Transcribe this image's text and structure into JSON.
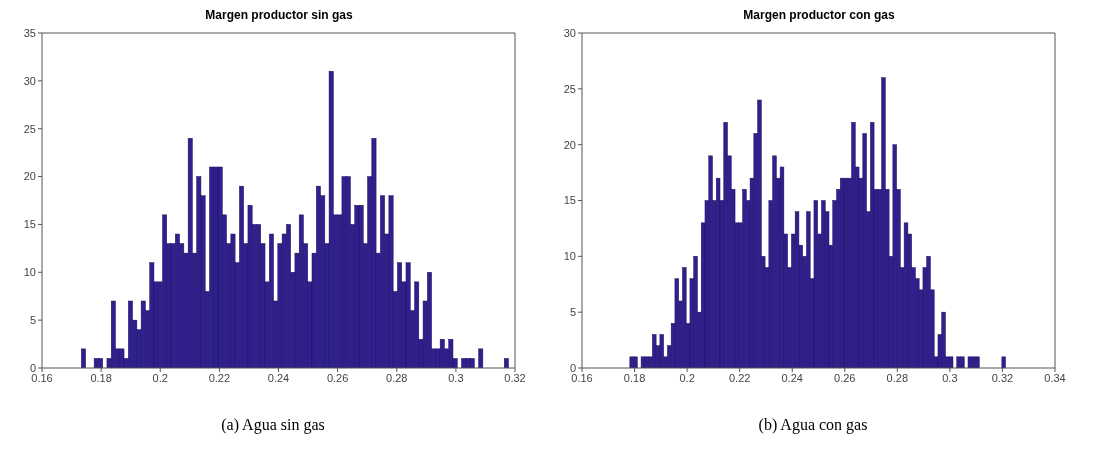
{
  "chart_data": [
    {
      "type": "histogram",
      "title": "Margen productor sin gas",
      "annotations": [
        "(a) Agua sin gas"
      ],
      "color": "#30208f",
      "bins": [
        0.1733,
        0.17475,
        0.17619,
        0.17764,
        0.17908,
        0.18053,
        0.18197,
        0.18342,
        0.18486,
        0.18631,
        0.18775,
        0.1892,
        0.19064,
        0.19209,
        0.19353,
        0.19498,
        0.19642,
        0.19787,
        0.19931,
        0.20076,
        0.2022,
        0.20365,
        0.20509,
        0.20654,
        0.20798,
        0.20943,
        0.21087,
        0.21232,
        0.21376,
        0.21521,
        0.21665,
        0.2181,
        0.21954,
        0.22099,
        0.22243,
        0.22388,
        0.22532,
        0.22677,
        0.22821,
        0.22966,
        0.2311,
        0.23255,
        0.23399,
        0.23544,
        0.23688,
        0.23833,
        0.23977,
        0.24122,
        0.24266,
        0.24411,
        0.24555,
        0.247,
        0.24844,
        0.24989,
        0.25133,
        0.25278,
        0.25422,
        0.25567,
        0.25711,
        0.25856,
        0.26,
        0.26145,
        0.26289,
        0.26434,
        0.26578,
        0.26723,
        0.26867,
        0.27012,
        0.27156,
        0.27301,
        0.27445,
        0.2759,
        0.27734,
        0.27879,
        0.28023,
        0.28168,
        0.28312,
        0.28457,
        0.28601,
        0.28746,
        0.2889,
        0.29035,
        0.29179,
        0.29324,
        0.29468,
        0.29613,
        0.29757,
        0.29902,
        0.30046,
        0.30191,
        0.30335,
        0.3048,
        0.30624,
        0.30769,
        0.30913,
        0.31058,
        0.31202,
        0.31347,
        0.31491,
        0.31636,
        0.3178
      ],
      "values": [
        2,
        0,
        0,
        1,
        1,
        0,
        1,
        7,
        2,
        2,
        1,
        7,
        5,
        4,
        7,
        6,
        11,
        9,
        9,
        16,
        13,
        13,
        14,
        13,
        12,
        24,
        12,
        20,
        18,
        8,
        21,
        21,
        21,
        16,
        13,
        14,
        11,
        19,
        13,
        17,
        15,
        15,
        13,
        9,
        14,
        7,
        13,
        14,
        15,
        10,
        12,
        16,
        13,
        9,
        12,
        19,
        18,
        13,
        31,
        16,
        16,
        20,
        20,
        15,
        17,
        17,
        13,
        20,
        24,
        12,
        18,
        14,
        18,
        8,
        11,
        9,
        11,
        6,
        9,
        3,
        7,
        10,
        2,
        2,
        3,
        2,
        3,
        1,
        0,
        1,
        1,
        1,
        0,
        2,
        0,
        0,
        0,
        0,
        0,
        1
      ],
      "xlim": [
        0.16,
        0.32
      ],
      "xticks": [
        0.16,
        0.18,
        0.2,
        0.22,
        0.24,
        0.26,
        0.28,
        0.3,
        0.32
      ],
      "ylim": [
        0,
        35
      ],
      "yticks": [
        0,
        5,
        10,
        15,
        20,
        25,
        30,
        35
      ]
    },
    {
      "type": "histogram",
      "title": "Margen productor con gas",
      "annotations": [
        "(b) Agua con gas"
      ],
      "color": "#30208f",
      "bins": [
        0.1782,
        0.17963,
        0.18106,
        0.18249,
        0.18392,
        0.18535,
        0.18678,
        0.18821,
        0.18964,
        0.19107,
        0.1925,
        0.19393,
        0.19536,
        0.19679,
        0.19822,
        0.19965,
        0.20108,
        0.20251,
        0.20394,
        0.20537,
        0.2068,
        0.20823,
        0.20966,
        0.21109,
        0.21252,
        0.21395,
        0.21538,
        0.21681,
        0.21824,
        0.21967,
        0.2211,
        0.22253,
        0.22396,
        0.22539,
        0.22682,
        0.22825,
        0.22968,
        0.23111,
        0.23254,
        0.23397,
        0.2354,
        0.23683,
        0.23826,
        0.23969,
        0.24112,
        0.24255,
        0.24398,
        0.24541,
        0.24684,
        0.24827,
        0.2497,
        0.25113,
        0.25256,
        0.25399,
        0.25542,
        0.25685,
        0.25828,
        0.25971,
        0.26114,
        0.26257,
        0.264,
        0.26543,
        0.26686,
        0.26829,
        0.26972,
        0.27115,
        0.27258,
        0.27401,
        0.27544,
        0.27687,
        0.2783,
        0.27973,
        0.28116,
        0.28259,
        0.28402,
        0.28545,
        0.28688,
        0.28831,
        0.28974,
        0.29117,
        0.2926,
        0.29403,
        0.29546,
        0.29689,
        0.29832,
        0.29975,
        0.30118,
        0.30261,
        0.30404,
        0.30547,
        0.3069,
        0.30833,
        0.30976,
        0.31119,
        0.31262,
        0.31405,
        0.31548,
        0.31691,
        0.31834,
        0.31977,
        0.3212
      ],
      "values": [
        1,
        1,
        0,
        1,
        1,
        1,
        3,
        2,
        3,
        1,
        2,
        4,
        8,
        6,
        9,
        4,
        8,
        10,
        5,
        13,
        15,
        19,
        15,
        17,
        15,
        22,
        19,
        16,
        13,
        13,
        16,
        15,
        17,
        21,
        24,
        10,
        9,
        15,
        19,
        17,
        18,
        12,
        9,
        12,
        14,
        11,
        10,
        14,
        8,
        15,
        12,
        15,
        14,
        11,
        15,
        16,
        17,
        17,
        17,
        22,
        18,
        17,
        21,
        14,
        22,
        16,
        16,
        26,
        16,
        10,
        20,
        16,
        9,
        13,
        12,
        9,
        8,
        7,
        9,
        10,
        7,
        1,
        3,
        5,
        1,
        1,
        0,
        1,
        1,
        0,
        1,
        1,
        1,
        0,
        0,
        0,
        0,
        0,
        0,
        1
      ],
      "xlim": [
        0.16,
        0.34
      ],
      "xticks": [
        0.16,
        0.18,
        0.2,
        0.22,
        0.24,
        0.26,
        0.28,
        0.3,
        0.32,
        0.34
      ],
      "ylim": [
        0,
        30
      ],
      "yticks": [
        0,
        5,
        10,
        15,
        20,
        25,
        30
      ]
    }
  ]
}
